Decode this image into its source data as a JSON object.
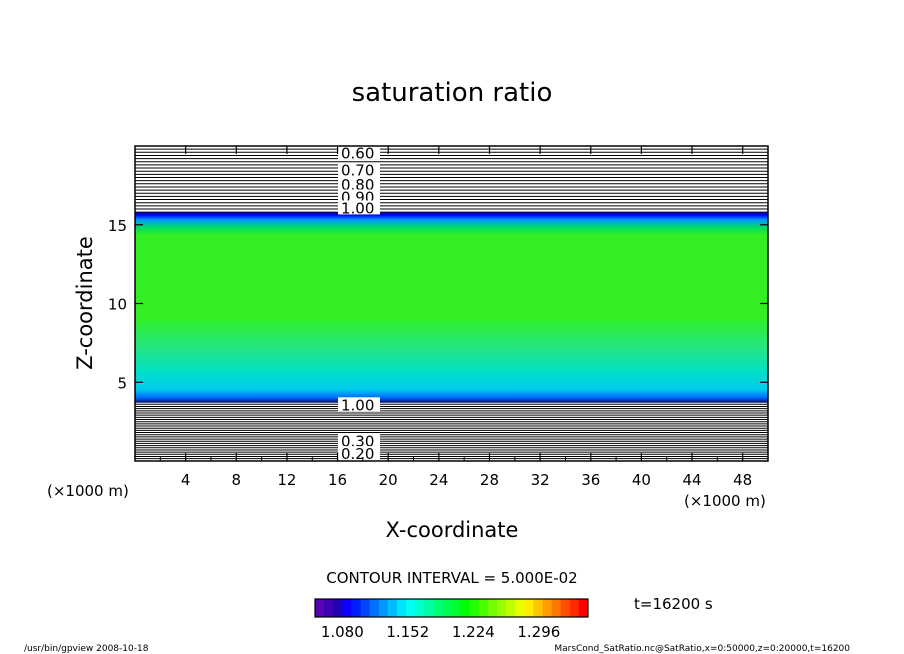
{
  "chart_data": {
    "type": "heatmap",
    "title": "saturation ratio",
    "xlabel": "X-coordinate",
    "ylabel": "Z-coordinate",
    "x_unit": "(×1000 m)",
    "x_unit_right": "(×1000 m)",
    "y_unit": "(×1000 m)",
    "xlim": [
      0,
      50
    ],
    "ylim": [
      0,
      20
    ],
    "x_ticks": [
      4,
      8,
      12,
      16,
      20,
      24,
      28,
      32,
      36,
      40,
      44,
      48
    ],
    "y_ticks": [
      5,
      10,
      15
    ],
    "contour_interval_text": "CONTOUR INTERVAL = 5.000E-02",
    "contour_upper_labels": [
      {
        "label": "0.60",
        "z": 19.6
      },
      {
        "label": "0.70",
        "z": 18.5
      },
      {
        "label": "0.80",
        "z": 17.6
      },
      {
        "label": "0.90",
        "z": 16.8
      },
      {
        "label": "1.00",
        "z": 16.1
      }
    ],
    "contour_lower_labels": [
      {
        "label": "1.00",
        "z": 3.6
      },
      {
        "label": "0.30",
        "z": 1.3
      },
      {
        "label": "0.20",
        "z": 0.5
      }
    ],
    "colorbar_min": 1.05,
    "colorbar_max": 1.35,
    "colorbar_ticks": [
      "1.080",
      "1.152",
      "1.224",
      "1.296"
    ],
    "time_label": "t=16200 s",
    "colors": {
      "fill_interior": "#33dd33",
      "fill_low": "#00e0c8",
      "band": "#0000ff",
      "band_dark": "#0a0a70"
    }
  },
  "footer": {
    "left": "/usr/bin/gpview   2008-10-18",
    "right": "MarsCond_SatRatio.nc@SatRatio,x=0:50000,z=0:20000,t=16200"
  }
}
